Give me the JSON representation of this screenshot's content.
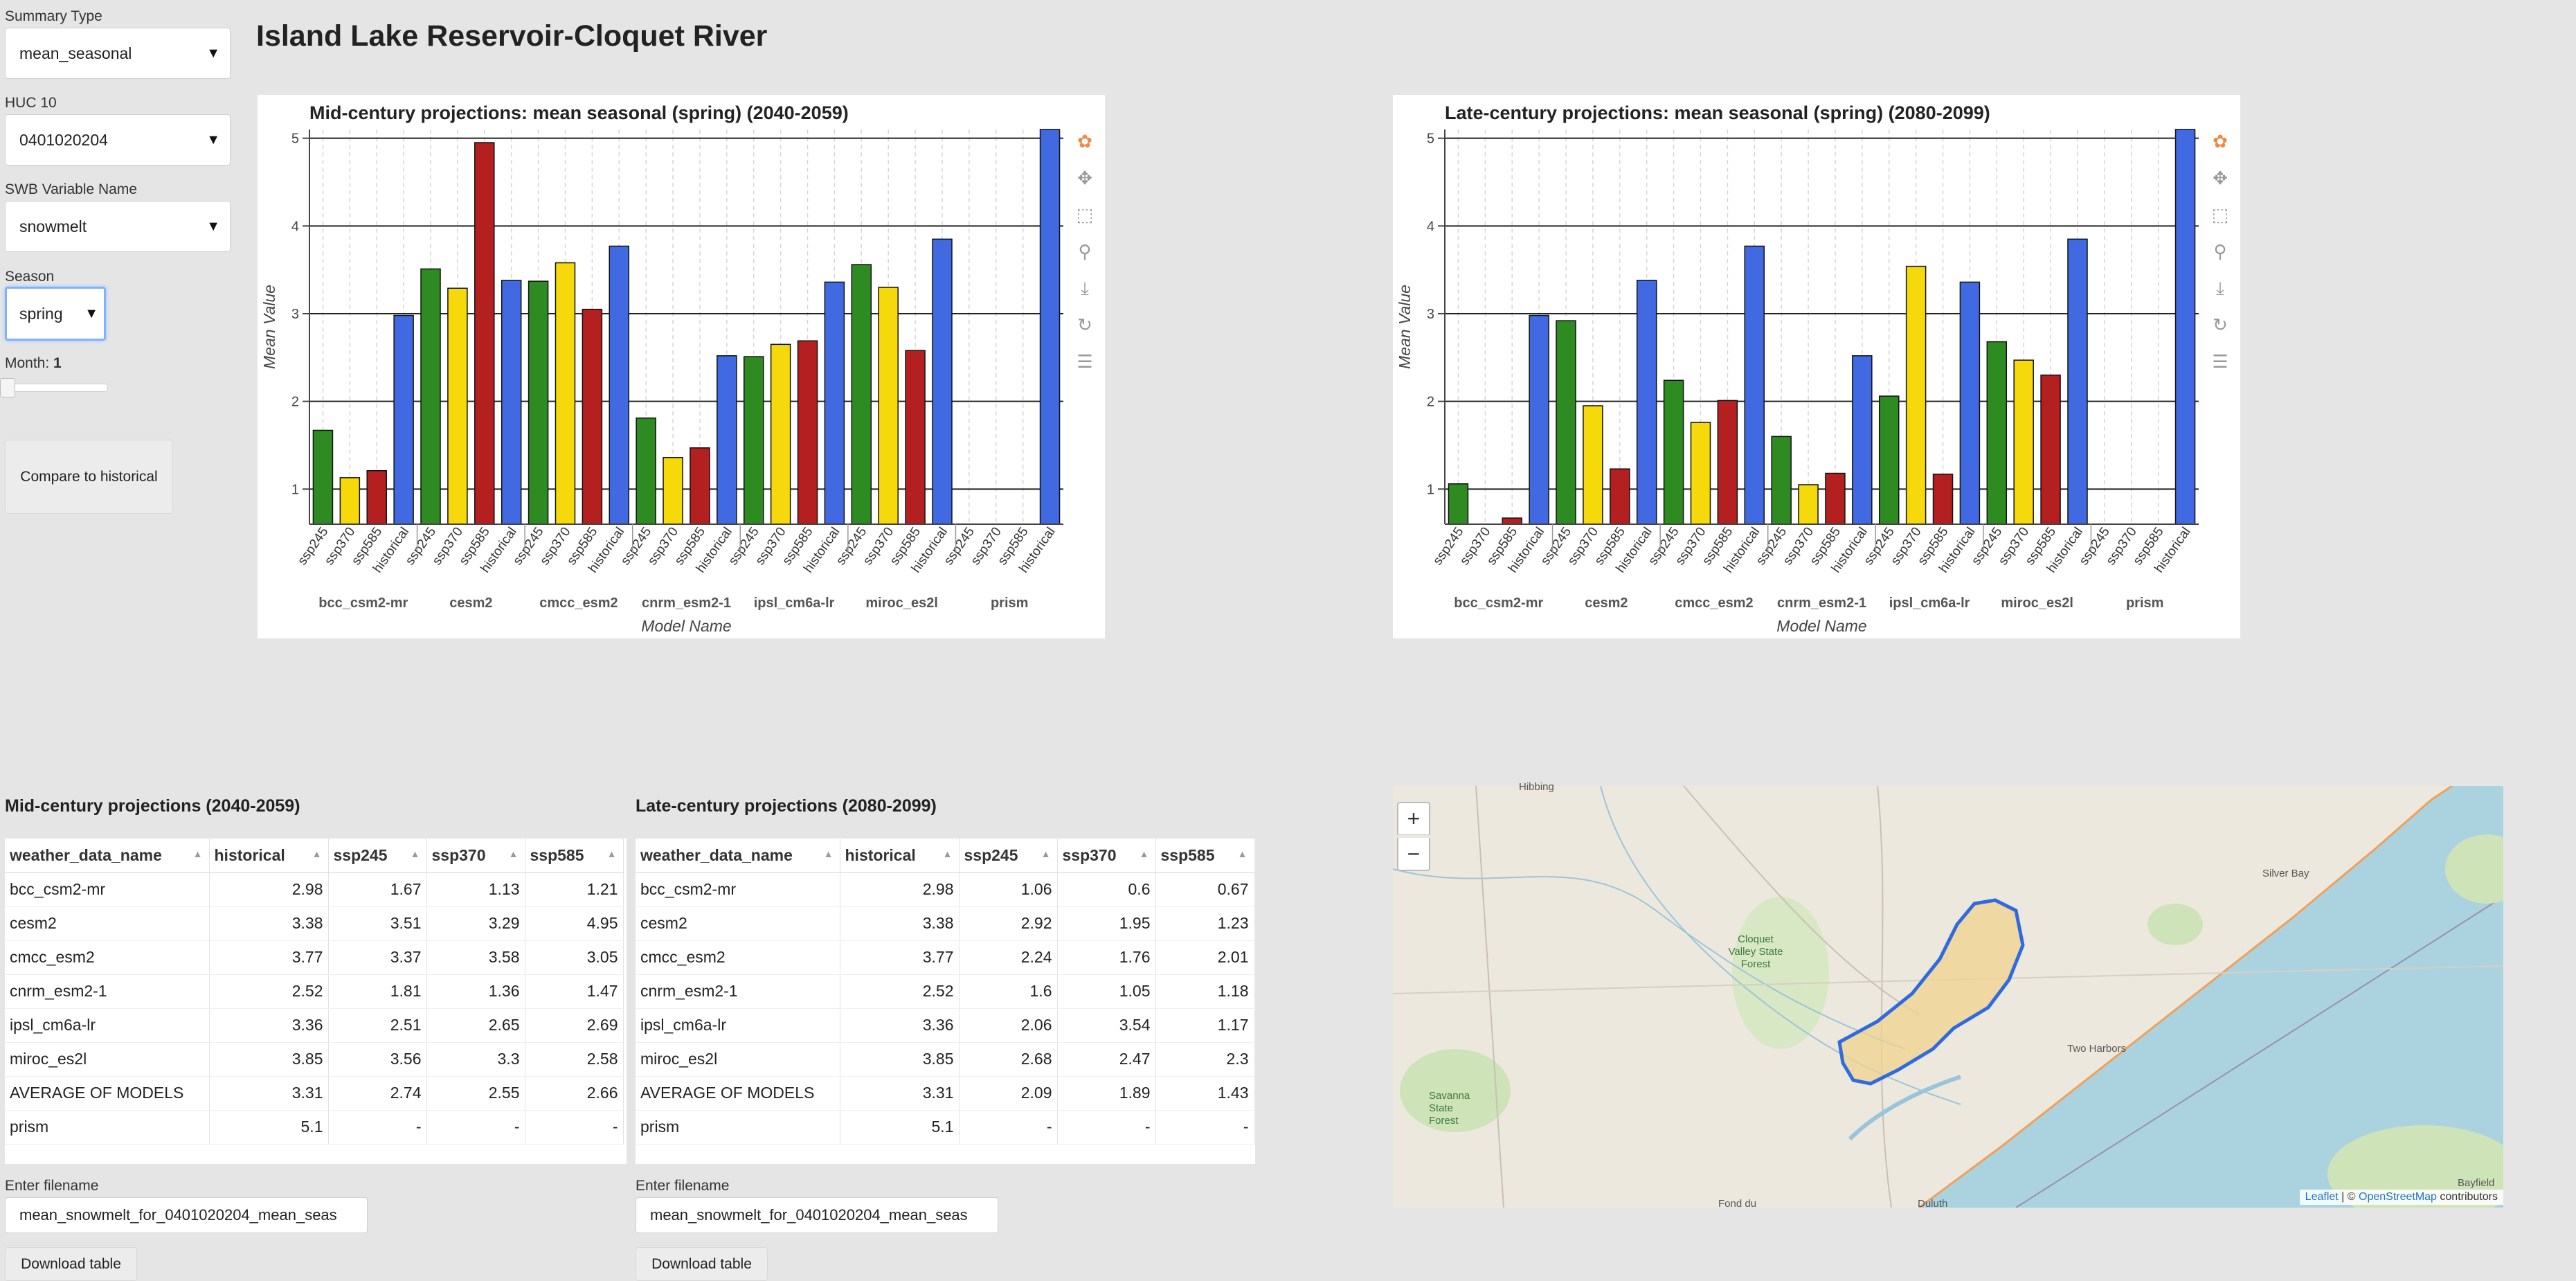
{
  "page_title": "Island Lake Reservoir-Cloquet River",
  "sidebar": {
    "summary_type": {
      "label": "Summary Type",
      "value": "mean_seasonal"
    },
    "huc10": {
      "label": "HUC 10",
      "value": "0401020204"
    },
    "swb_variable": {
      "label": "SWB Variable Name",
      "value": "snowmelt"
    },
    "season": {
      "label": "Season",
      "value": "spring"
    },
    "month": {
      "label": "Month:",
      "value": "1"
    },
    "compare_button": "Compare to historical"
  },
  "chart_data": [
    {
      "type": "bar",
      "title": "Mid-century projections: mean seasonal (spring) (2040-2059)",
      "xlabel": "Model Name",
      "ylabel": "Mean Value",
      "ylim": [
        0.6,
        5.1
      ],
      "yticks": [
        1,
        2,
        3,
        4,
        5
      ],
      "grid": true,
      "groups": [
        "bcc_csm2-mr",
        "cesm2",
        "cmcc_esm2",
        "cnrm_esm2-1",
        "ipsl_cm6a-lr",
        "miroc_es2l",
        "prism"
      ],
      "sub_categories": [
        "ssp245",
        "ssp370",
        "ssp585",
        "historical"
      ],
      "series": [
        {
          "name": "ssp245",
          "color": "#2e8b22",
          "values": [
            1.67,
            3.51,
            3.37,
            1.81,
            2.51,
            3.56,
            null
          ]
        },
        {
          "name": "ssp370",
          "color": "#f5d90a",
          "values": [
            1.13,
            3.29,
            3.58,
            1.36,
            2.65,
            3.3,
            null
          ]
        },
        {
          "name": "ssp585",
          "color": "#b41f1f",
          "values": [
            1.21,
            4.95,
            3.05,
            1.47,
            2.69,
            2.58,
            null
          ]
        },
        {
          "name": "historical",
          "color": "#4169e1",
          "values": [
            2.98,
            3.38,
            3.77,
            2.52,
            3.36,
            3.85,
            5.1
          ]
        }
      ]
    },
    {
      "type": "bar",
      "title": "Late-century projections: mean seasonal (spring) (2080-2099)",
      "xlabel": "Model Name",
      "ylabel": "Mean Value",
      "ylim": [
        0.6,
        5.1
      ],
      "yticks": [
        1,
        2,
        3,
        4,
        5
      ],
      "grid": true,
      "groups": [
        "bcc_csm2-mr",
        "cesm2",
        "cmcc_esm2",
        "cnrm_esm2-1",
        "ipsl_cm6a-lr",
        "miroc_es2l",
        "prism"
      ],
      "sub_categories": [
        "ssp245",
        "ssp370",
        "ssp585",
        "historical"
      ],
      "series": [
        {
          "name": "ssp245",
          "color": "#2e8b22",
          "values": [
            1.06,
            2.92,
            2.24,
            1.6,
            2.06,
            2.68,
            null
          ]
        },
        {
          "name": "ssp370",
          "color": "#f5d90a",
          "values": [
            0.6,
            1.95,
            1.76,
            1.05,
            3.54,
            2.47,
            null
          ]
        },
        {
          "name": "ssp585",
          "color": "#b41f1f",
          "values": [
            0.67,
            1.23,
            2.01,
            1.18,
            1.17,
            2.3,
            null
          ]
        },
        {
          "name": "historical",
          "color": "#4169e1",
          "values": [
            2.98,
            3.38,
            3.77,
            2.52,
            3.36,
            3.85,
            5.1
          ]
        }
      ]
    }
  ],
  "tables": {
    "columns": [
      "weather_data_name",
      "historical",
      "ssp245",
      "ssp370",
      "ssp585"
    ],
    "mid": {
      "title": "Mid-century projections (2040-2059)",
      "rows": [
        [
          "bcc_csm2-mr",
          "2.98",
          "1.67",
          "1.13",
          "1.21"
        ],
        [
          "cesm2",
          "3.38",
          "3.51",
          "3.29",
          "4.95"
        ],
        [
          "cmcc_esm2",
          "3.77",
          "3.37",
          "3.58",
          "3.05"
        ],
        [
          "cnrm_esm2-1",
          "2.52",
          "1.81",
          "1.36",
          "1.47"
        ],
        [
          "ipsl_cm6a-lr",
          "3.36",
          "2.51",
          "2.65",
          "2.69"
        ],
        [
          "miroc_es2l",
          "3.85",
          "3.56",
          "3.3",
          "2.58"
        ],
        [
          "AVERAGE OF MODELS",
          "3.31",
          "2.74",
          "2.55",
          "2.66"
        ],
        [
          "prism",
          "5.1",
          "-",
          "-",
          "-"
        ]
      ],
      "filename_label": "Enter filename",
      "filename_value": "mean_snowmelt_for_0401020204_mean_seas",
      "download_label": "Download table"
    },
    "late": {
      "title": "Late-century projections (2080-2099)",
      "rows": [
        [
          "bcc_csm2-mr",
          "2.98",
          "1.06",
          "0.6",
          "0.67"
        ],
        [
          "cesm2",
          "3.38",
          "2.92",
          "1.95",
          "1.23"
        ],
        [
          "cmcc_esm2",
          "3.77",
          "2.24",
          "1.76",
          "2.01"
        ],
        [
          "cnrm_esm2-1",
          "2.52",
          "1.6",
          "1.05",
          "1.18"
        ],
        [
          "ipsl_cm6a-lr",
          "3.36",
          "2.06",
          "3.54",
          "1.17"
        ],
        [
          "miroc_es2l",
          "3.85",
          "2.68",
          "2.47",
          "2.3"
        ],
        [
          "AVERAGE OF MODELS",
          "3.31",
          "2.09",
          "1.89",
          "1.43"
        ],
        [
          "prism",
          "5.1",
          "-",
          "-",
          "-"
        ]
      ],
      "filename_label": "Enter filename",
      "filename_value": "mean_snowmelt_for_0401020204_mean_seas",
      "download_label": "Download table"
    }
  },
  "map": {
    "zoom_in": "+",
    "zoom_out": "−",
    "attribution_leaflet": "Leaflet",
    "attribution_sep": " | © ",
    "attribution_osm": "OpenStreetMap",
    "attribution_tail": " contributors",
    "places": [
      "Hibbing",
      "Cloquet Valley State Forest",
      "Savanna State Forest",
      "Two Harbors",
      "Silver Bay",
      "Duluth",
      "Bayfield",
      "Fond du"
    ]
  }
}
